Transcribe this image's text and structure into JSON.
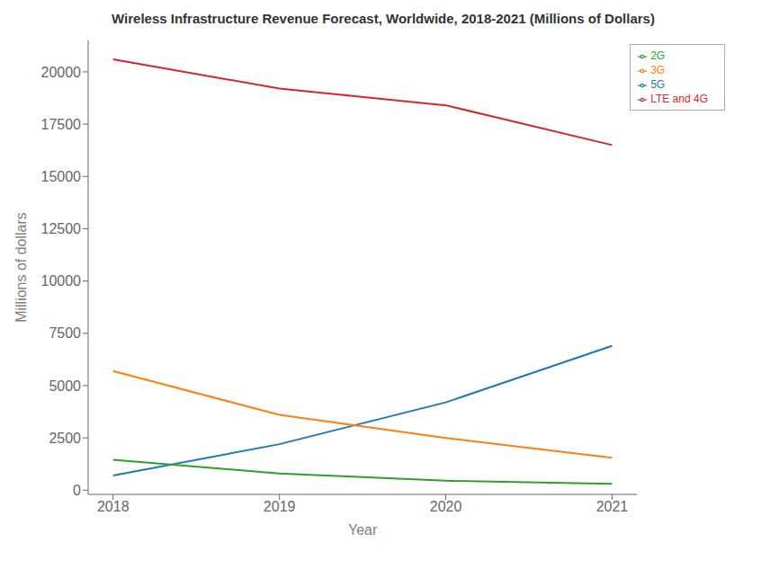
{
  "chart_data": {
    "type": "line",
    "title": "Wireless Infrastructure Revenue Forecast, Worldwide, 2018-2021 (Millions of Dollars)",
    "xlabel": "Year",
    "ylabel": "Millions of dollars",
    "x": [
      2018,
      2019,
      2020,
      2021
    ],
    "series": [
      {
        "name": "5G",
        "color": "#1f77b4",
        "values": [
          700,
          2200,
          4200,
          6900
        ]
      },
      {
        "name": "3G",
        "color": "#ff7f0e",
        "values": [
          5700,
          3600,
          2500,
          1550
        ]
      },
      {
        "name": "2G",
        "color": "#2ca02c",
        "values": [
          1450,
          800,
          450,
          300
        ]
      },
      {
        "name": "LTE and 4G",
        "color": "#d62728",
        "values": [
          20600,
          19200,
          18400,
          16500
        ]
      }
    ],
    "xlim": [
      2017.85,
      2021.15
    ],
    "ylim": [
      -200,
      21500
    ],
    "xticks": [
      2018,
      2019,
      2020,
      2021
    ],
    "yticks": [
      0,
      2500,
      5000,
      7500,
      10000,
      12500,
      15000,
      17500,
      20000
    ],
    "grid": false,
    "legend": "upper right"
  }
}
